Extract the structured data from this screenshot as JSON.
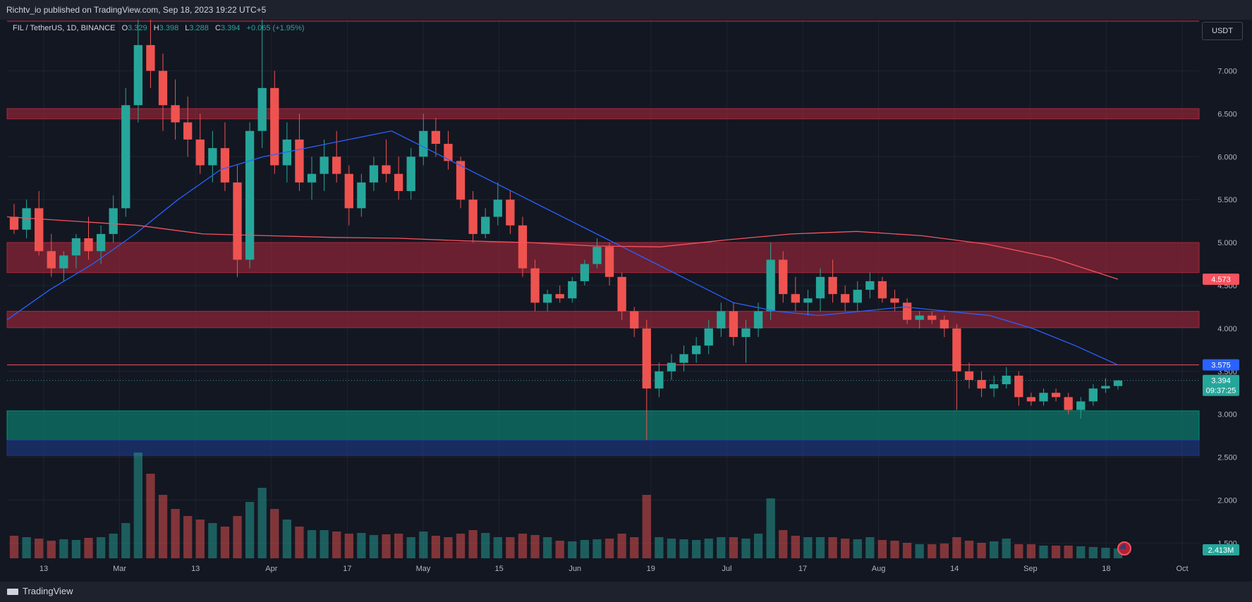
{
  "header": {
    "published": "Richtv_io published on TradingView.com, Sep 18, 2023 19:22 UTC+5"
  },
  "legend": {
    "symbol": "FIL / TetherUS, 1D, BINANCE",
    "o_label": "O",
    "o": "3.329",
    "h_label": "H",
    "h": "3.398",
    "l_label": "L",
    "l": "3.288",
    "c_label": "C",
    "c": "3.394",
    "change": "+0.065 (+1.95%)"
  },
  "currency_button": "USDT",
  "footer": {
    "brand": "TradingView"
  },
  "price_labels": {
    "ma_red": "4.573",
    "ma_blue": "3.575",
    "last": "3.394",
    "countdown": "09:37:25",
    "volume": "2.413M"
  },
  "colors": {
    "bg": "#131722",
    "up": "#26a69a",
    "down": "#ef5350",
    "ma_blue": "#2962ff",
    "ma_red": "#f7525f",
    "zone_red": "#b2283c",
    "zone_green": "#089981",
    "zone_blue": "#1e3a8a"
  },
  "chart_data": {
    "type": "candlestick",
    "symbol": "FIL / TetherUS",
    "interval": "1D",
    "exchange": "BINANCE",
    "y_axis_ticks": [
      "7.000",
      "6.500",
      "6.000",
      "5.500",
      "5.000",
      "4.500",
      "4.000",
      "3.500",
      "3.000",
      "2.500",
      "2.000",
      "1.500"
    ],
    "x_axis_ticks": [
      "13",
      "Mar",
      "13",
      "Apr",
      "17",
      "May",
      "15",
      "Jun",
      "19",
      "Jul",
      "17",
      "Aug",
      "14",
      "Sep",
      "18",
      "Oct"
    ],
    "zones": [
      {
        "color": "red",
        "from": 6.44,
        "to": 6.56
      },
      {
        "color": "red",
        "from": 4.65,
        "to": 5.0
      },
      {
        "color": "red",
        "from": 4.01,
        "to": 4.2
      },
      {
        "color": "green",
        "from": 2.7,
        "to": 3.04
      },
      {
        "color": "blue",
        "from": 2.52,
        "to": 2.7
      }
    ],
    "levels": [
      3.575
    ],
    "series": [
      {
        "name": "FIL/USDT",
        "ohlc": [
          [
            5.3,
            5.45,
            5.1,
            5.15
          ],
          [
            5.15,
            5.5,
            5.05,
            5.4
          ],
          [
            5.4,
            5.6,
            4.85,
            4.9
          ],
          [
            4.9,
            5.1,
            4.6,
            4.7
          ],
          [
            4.7,
            4.9,
            4.55,
            4.85
          ],
          [
            4.85,
            5.1,
            4.7,
            5.05
          ],
          [
            5.05,
            5.3,
            4.8,
            4.9
          ],
          [
            4.9,
            5.2,
            4.75,
            5.1
          ],
          [
            5.1,
            5.55,
            5.0,
            5.4
          ],
          [
            5.4,
            6.8,
            5.3,
            6.6
          ],
          [
            6.6,
            7.6,
            6.4,
            7.3
          ],
          [
            7.3,
            8.5,
            6.8,
            7.0
          ],
          [
            7.0,
            7.2,
            6.3,
            6.6
          ],
          [
            6.6,
            6.9,
            6.2,
            6.4
          ],
          [
            6.4,
            6.7,
            6.0,
            6.2
          ],
          [
            6.2,
            6.5,
            5.8,
            5.9
          ],
          [
            5.9,
            6.3,
            5.7,
            6.1
          ],
          [
            6.1,
            6.4,
            5.6,
            5.7
          ],
          [
            5.7,
            5.9,
            4.6,
            4.8
          ],
          [
            4.8,
            6.4,
            4.7,
            6.3
          ],
          [
            6.3,
            7.8,
            6.1,
            6.8
          ],
          [
            6.8,
            7.0,
            5.8,
            5.9
          ],
          [
            5.9,
            6.4,
            5.7,
            6.2
          ],
          [
            6.2,
            6.5,
            5.6,
            5.7
          ],
          [
            5.7,
            6.0,
            5.5,
            5.8
          ],
          [
            5.8,
            6.2,
            5.6,
            6.0
          ],
          [
            6.0,
            6.3,
            5.7,
            5.8
          ],
          [
            5.8,
            5.9,
            5.2,
            5.4
          ],
          [
            5.4,
            5.8,
            5.3,
            5.7
          ],
          [
            5.7,
            6.0,
            5.6,
            5.9
          ],
          [
            5.9,
            6.2,
            5.7,
            5.8
          ],
          [
            5.8,
            6.0,
            5.5,
            5.6
          ],
          [
            5.6,
            6.1,
            5.5,
            6.0
          ],
          [
            6.0,
            6.5,
            5.9,
            6.3
          ],
          [
            6.3,
            6.45,
            6.0,
            6.15
          ],
          [
            6.15,
            6.3,
            5.85,
            5.95
          ],
          [
            5.95,
            6.0,
            5.4,
            5.5
          ],
          [
            5.5,
            5.6,
            5.0,
            5.1
          ],
          [
            5.1,
            5.4,
            5.05,
            5.3
          ],
          [
            5.3,
            5.7,
            5.2,
            5.5
          ],
          [
            5.5,
            5.6,
            5.1,
            5.2
          ],
          [
            5.2,
            5.3,
            4.6,
            4.7
          ],
          [
            4.7,
            4.8,
            4.2,
            4.3
          ],
          [
            4.3,
            4.45,
            4.2,
            4.4
          ],
          [
            4.4,
            4.5,
            4.3,
            4.35
          ],
          [
            4.35,
            4.6,
            4.3,
            4.55
          ],
          [
            4.55,
            4.8,
            4.5,
            4.75
          ],
          [
            4.75,
            5.05,
            4.7,
            4.95
          ],
          [
            4.95,
            5.0,
            4.5,
            4.6
          ],
          [
            4.6,
            4.65,
            4.1,
            4.2
          ],
          [
            4.2,
            4.25,
            3.9,
            4.0
          ],
          [
            4.0,
            4.1,
            2.7,
            3.3
          ],
          [
            3.3,
            3.6,
            3.2,
            3.5
          ],
          [
            3.5,
            3.7,
            3.4,
            3.6
          ],
          [
            3.6,
            3.8,
            3.5,
            3.7
          ],
          [
            3.7,
            3.9,
            3.6,
            3.8
          ],
          [
            3.8,
            4.1,
            3.7,
            4.0
          ],
          [
            4.0,
            4.3,
            3.9,
            4.2
          ],
          [
            4.2,
            4.3,
            3.8,
            3.9
          ],
          [
            3.9,
            4.1,
            3.6,
            4.0
          ],
          [
            4.0,
            4.3,
            3.9,
            4.2
          ],
          [
            4.2,
            5.0,
            4.1,
            4.8
          ],
          [
            4.8,
            4.9,
            4.3,
            4.4
          ],
          [
            4.4,
            4.6,
            4.2,
            4.3
          ],
          [
            4.3,
            4.45,
            4.15,
            4.35
          ],
          [
            4.35,
            4.7,
            4.2,
            4.6
          ],
          [
            4.6,
            4.8,
            4.3,
            4.4
          ],
          [
            4.4,
            4.5,
            4.2,
            4.3
          ],
          [
            4.3,
            4.55,
            4.2,
            4.45
          ],
          [
            4.45,
            4.65,
            4.35,
            4.55
          ],
          [
            4.55,
            4.6,
            4.3,
            4.35
          ],
          [
            4.35,
            4.45,
            4.2,
            4.3
          ],
          [
            4.3,
            4.35,
            4.05,
            4.1
          ],
          [
            4.1,
            4.2,
            4.0,
            4.15
          ],
          [
            4.15,
            4.2,
            4.05,
            4.1
          ],
          [
            4.1,
            4.15,
            3.9,
            4.0
          ],
          [
            4.0,
            4.05,
            3.05,
            3.5
          ],
          [
            3.5,
            3.6,
            3.3,
            3.4
          ],
          [
            3.4,
            3.5,
            3.2,
            3.3
          ],
          [
            3.3,
            3.45,
            3.2,
            3.35
          ],
          [
            3.35,
            3.55,
            3.3,
            3.45
          ],
          [
            3.45,
            3.5,
            3.1,
            3.2
          ],
          [
            3.2,
            3.25,
            3.1,
            3.15
          ],
          [
            3.15,
            3.3,
            3.1,
            3.25
          ],
          [
            3.25,
            3.3,
            3.15,
            3.2
          ],
          [
            3.2,
            3.25,
            3.0,
            3.05
          ],
          [
            3.05,
            3.2,
            2.95,
            3.15
          ],
          [
            3.15,
            3.35,
            3.1,
            3.3
          ],
          [
            3.3,
            3.42,
            3.25,
            3.33
          ],
          [
            3.329,
            3.398,
            3.288,
            3.394
          ]
        ]
      },
      {
        "name": "MA (blue)",
        "values": [
          4.1,
          4.45,
          4.75,
          5.1,
          5.5,
          5.85,
          6.0,
          6.1,
          6.2,
          6.3,
          6.05,
          5.8,
          5.55,
          5.3,
          5.05,
          4.8,
          4.55,
          4.3,
          4.2,
          4.15,
          4.2,
          4.25,
          4.2,
          4.15,
          4.0,
          3.8,
          3.575
        ]
      },
      {
        "name": "MA (red)",
        "values": [
          5.3,
          5.25,
          5.2,
          5.1,
          5.08,
          5.06,
          5.05,
          5.02,
          5.0,
          4.96,
          4.95,
          5.03,
          5.1,
          5.13,
          5.08,
          4.98,
          4.82,
          4.573
        ]
      }
    ],
    "volume": [
      0.32,
      0.3,
      0.28,
      0.25,
      0.27,
      0.26,
      0.29,
      0.3,
      0.35,
      0.5,
      1.5,
      1.2,
      0.9,
      0.7,
      0.6,
      0.55,
      0.5,
      0.45,
      0.6,
      0.8,
      1.0,
      0.7,
      0.55,
      0.45,
      0.4,
      0.4,
      0.38,
      0.35,
      0.36,
      0.33,
      0.34,
      0.35,
      0.3,
      0.38,
      0.32,
      0.3,
      0.35,
      0.4,
      0.36,
      0.3,
      0.3,
      0.35,
      0.33,
      0.3,
      0.25,
      0.24,
      0.26,
      0.27,
      0.28,
      0.35,
      0.3,
      0.9,
      0.3,
      0.28,
      0.27,
      0.26,
      0.28,
      0.3,
      0.3,
      0.28,
      0.35,
      0.85,
      0.4,
      0.32,
      0.3,
      0.3,
      0.3,
      0.28,
      0.27,
      0.3,
      0.26,
      0.25,
      0.22,
      0.2,
      0.2,
      0.21,
      0.3,
      0.25,
      0.22,
      0.24,
      0.28,
      0.2,
      0.2,
      0.18,
      0.18,
      0.18,
      0.17,
      0.16,
      0.15,
      0.14
    ]
  }
}
